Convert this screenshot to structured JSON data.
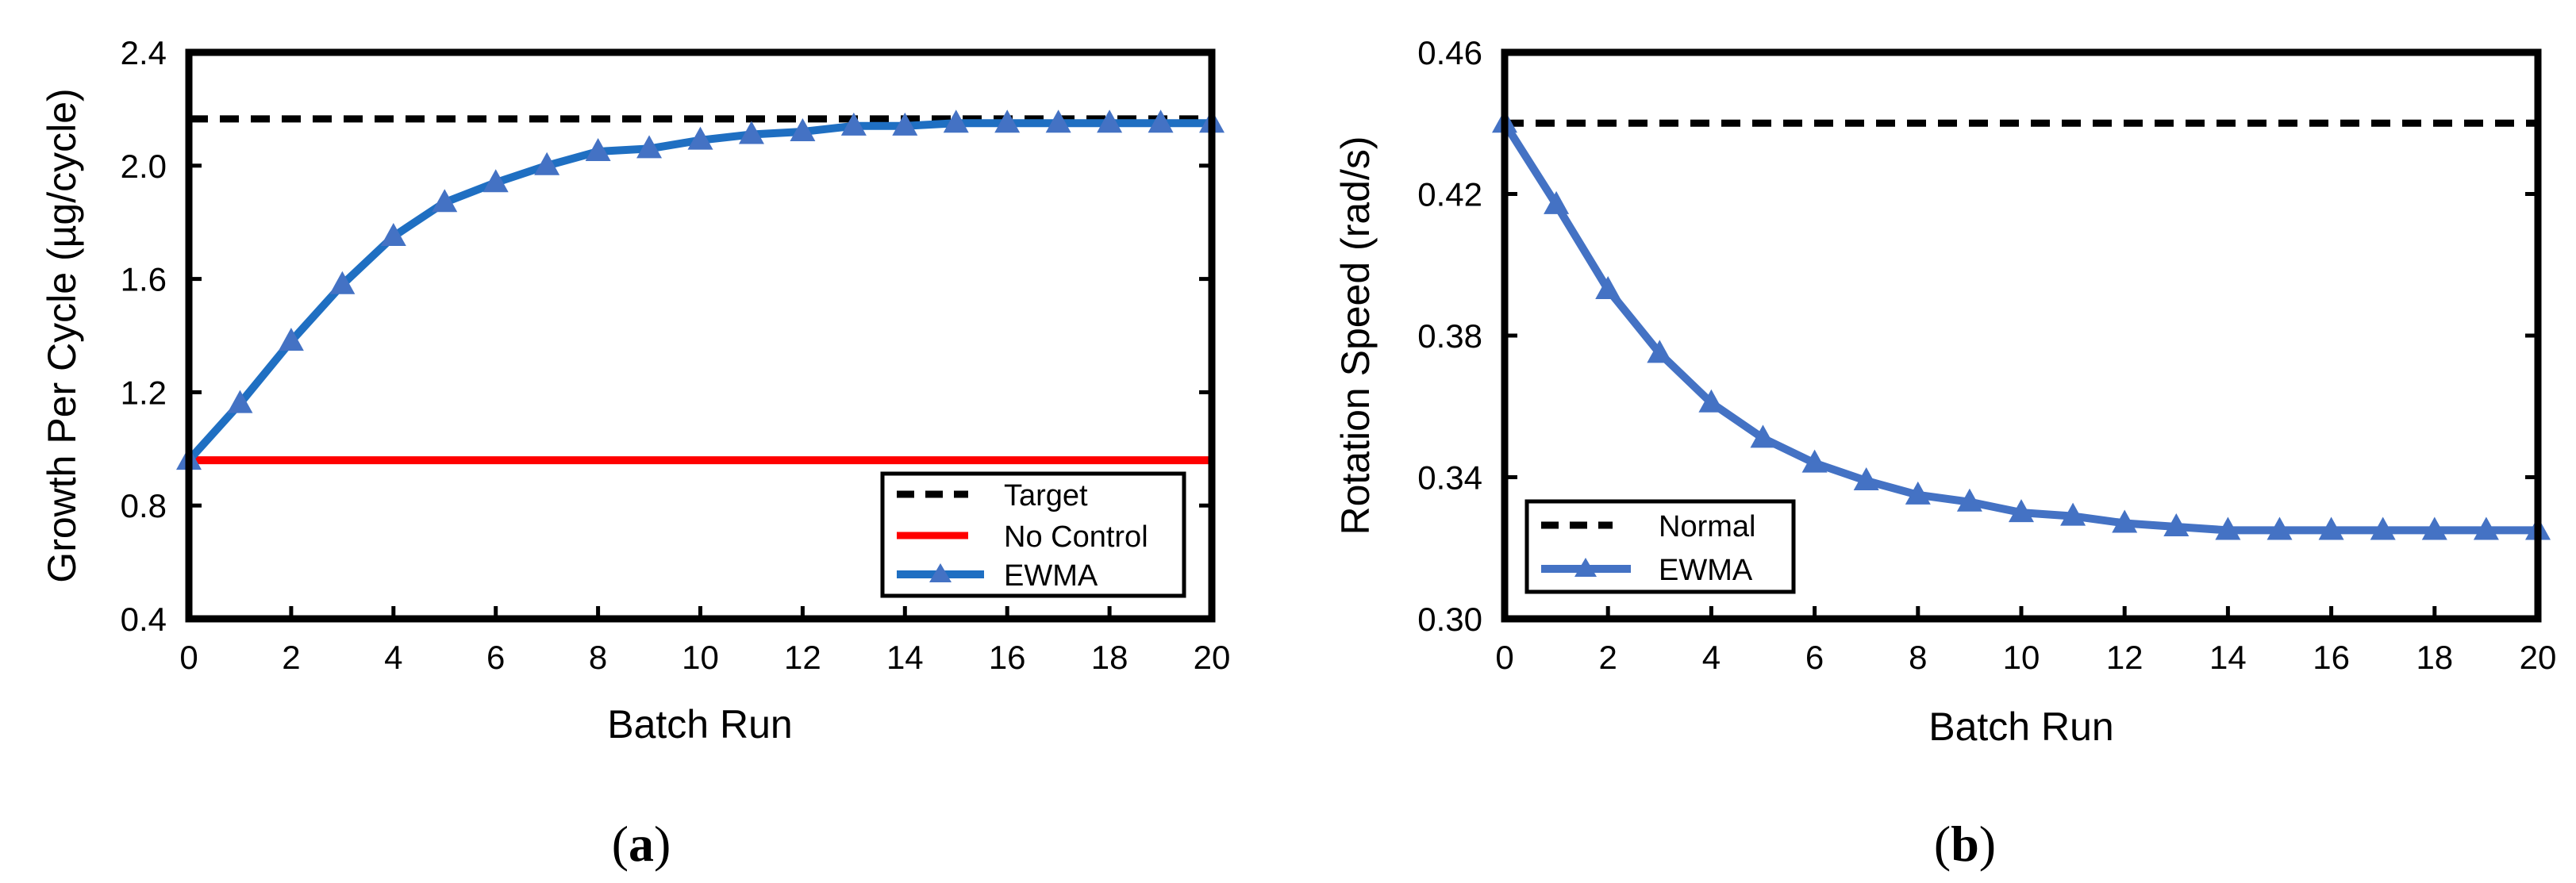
{
  "chart_data": [
    {
      "type": "line",
      "panel_label": {
        "open": "(",
        "letter": "a",
        "close": ")"
      },
      "xlabel": "Batch Run",
      "ylabel": "Growth Per Cycle (µg/cycle)",
      "xlim": [
        0,
        20
      ],
      "ylim": [
        0.4,
        2.4
      ],
      "xticks": [
        0,
        2,
        4,
        6,
        8,
        10,
        12,
        14,
        16,
        18,
        20
      ],
      "xtick_labels": [
        "0",
        "2",
        "4",
        "6",
        "8",
        "10",
        "12",
        "14",
        "16",
        "18",
        "20"
      ],
      "yticks": [
        0.4,
        0.8,
        1.2,
        1.6,
        2.0,
        2.4
      ],
      "ytick_labels": [
        "0.4",
        "0.8",
        "1.2",
        "1.6",
        "2.0",
        "2.4"
      ],
      "grid": false,
      "legend": "bottom-right",
      "series": [
        {
          "name": "Target",
          "style": "dashed",
          "color": "#000000",
          "marker": "none",
          "x": [
            0,
            20
          ],
          "y": [
            2.165,
            2.165
          ]
        },
        {
          "name": "No Control",
          "style": "solid",
          "color": "#ff0000",
          "marker": "none",
          "x": [
            0,
            20
          ],
          "y": [
            0.96,
            0.96
          ]
        },
        {
          "name": "EWMA",
          "style": "solid",
          "color": "#1f6fc2",
          "marker": "triangle",
          "marker_color": "#4472c4",
          "x": [
            0,
            1,
            2,
            3,
            4,
            5,
            6,
            7,
            8,
            9,
            10,
            11,
            12,
            13,
            14,
            15,
            16,
            17,
            18,
            19,
            20
          ],
          "y": [
            0.96,
            1.16,
            1.38,
            1.58,
            1.75,
            1.87,
            1.94,
            2.0,
            2.05,
            2.06,
            2.09,
            2.11,
            2.12,
            2.14,
            2.14,
            2.15,
            2.15,
            2.15,
            2.15,
            2.15,
            2.15
          ]
        }
      ]
    },
    {
      "type": "line",
      "panel_label": {
        "open": "(",
        "letter": "b",
        "close": ")"
      },
      "xlabel": "Batch Run",
      "ylabel": "Rotation Speed (rad/s)",
      "xlim": [
        0,
        20
      ],
      "ylim": [
        0.3,
        0.46
      ],
      "xticks": [
        0,
        2,
        4,
        6,
        8,
        10,
        12,
        14,
        16,
        18,
        20
      ],
      "xtick_labels": [
        "0",
        "2",
        "4",
        "6",
        "8",
        "10",
        "12",
        "14",
        "16",
        "18",
        "20"
      ],
      "yticks": [
        0.3,
        0.34,
        0.38,
        0.42,
        0.46
      ],
      "ytick_labels": [
        "0.30",
        "0.34",
        "0.38",
        "0.42",
        "0.46"
      ],
      "grid": false,
      "legend": "middle-left",
      "series": [
        {
          "name": "Normal",
          "style": "dashed",
          "color": "#000000",
          "marker": "none",
          "x": [
            0,
            20
          ],
          "y": [
            0.44,
            0.44
          ]
        },
        {
          "name": "EWMA",
          "style": "solid",
          "color": "#4472c4",
          "marker": "triangle",
          "marker_color": "#4472c4",
          "x": [
            0,
            1,
            2,
            3,
            4,
            5,
            6,
            7,
            8,
            9,
            10,
            11,
            12,
            13,
            14,
            15,
            16,
            17,
            18,
            19,
            20
          ],
          "y": [
            0.44,
            0.417,
            0.393,
            0.375,
            0.361,
            0.351,
            0.344,
            0.339,
            0.335,
            0.333,
            0.33,
            0.329,
            0.327,
            0.326,
            0.325,
            0.325,
            0.325,
            0.325,
            0.325,
            0.325,
            0.325
          ]
        }
      ]
    }
  ]
}
